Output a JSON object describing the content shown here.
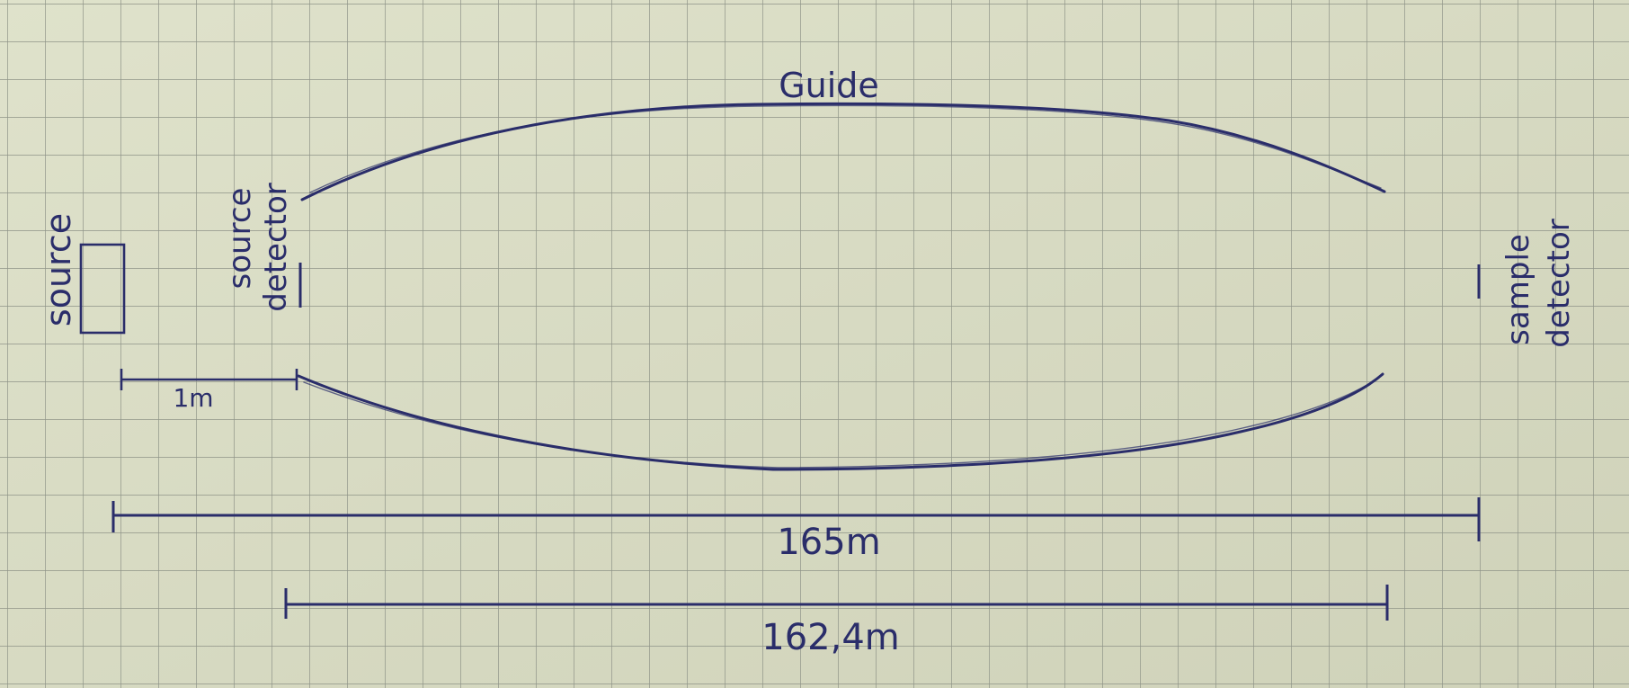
{
  "labels": {
    "guide": "Guide",
    "source": "source",
    "source_detector_line1": "source",
    "source_detector_line2": "detector",
    "sample_detector_line1": "sample",
    "sample_detector_line2": "detector",
    "dim_source_to_source_detector": "1m",
    "dim_total": "165m",
    "dim_guide": "162,4m"
  },
  "colors": {
    "paper": "#d9dcc4",
    "grid": "#8f9488",
    "ink": "#2a2d6a"
  }
}
